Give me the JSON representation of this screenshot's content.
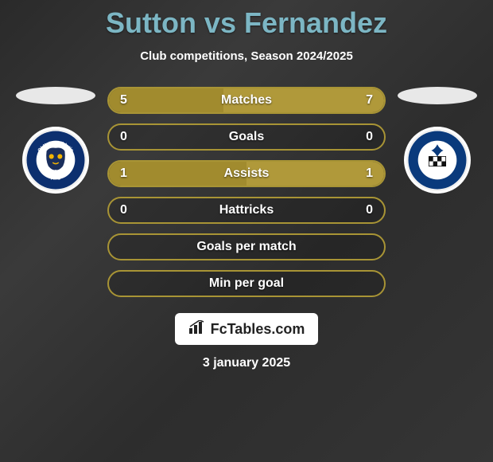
{
  "title": "Sutton vs Fernandez",
  "subtitle": "Club competitions, Season 2024/2025",
  "date": "3 january 2025",
  "fctables_label": "FcTables.com",
  "colors": {
    "left_fill": "#a18b2e",
    "right_fill": "#b0993a",
    "border": "#a89435",
    "title": "#7cb6c4"
  },
  "club_left": {
    "name": "Oldham Athletic",
    "ring_color": "#0c2f6f",
    "inner_color": "#ffffff",
    "text_color": "#ffffff"
  },
  "club_right": {
    "name": "Eastleigh FC",
    "ring_color": "#0a3a7c",
    "inner_color": "#ffffff",
    "text_color": "#ffffff",
    "check_color": "#111111"
  },
  "rows": [
    {
      "label": "Matches",
      "left": "5",
      "right": "7",
      "left_pct": 41.7,
      "right_pct": 58.3
    },
    {
      "label": "Goals",
      "left": "0",
      "right": "0",
      "left_pct": 0,
      "right_pct": 0
    },
    {
      "label": "Assists",
      "left": "1",
      "right": "1",
      "left_pct": 50,
      "right_pct": 50
    },
    {
      "label": "Hattricks",
      "left": "0",
      "right": "0",
      "left_pct": 0,
      "right_pct": 0
    },
    {
      "label": "Goals per match",
      "left": "",
      "right": "",
      "left_pct": 0,
      "right_pct": 0
    },
    {
      "label": "Min per goal",
      "left": "",
      "right": "",
      "left_pct": 0,
      "right_pct": 0
    }
  ]
}
